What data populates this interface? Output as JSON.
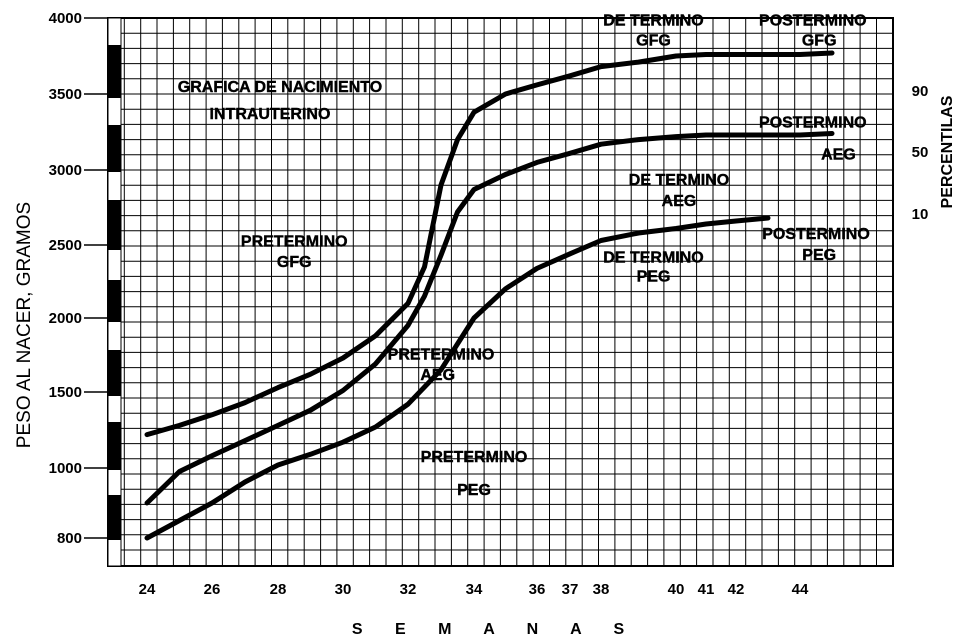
{
  "chart_data": {
    "type": "line",
    "title": "GRAFICA DE NACIMIENTO",
    "subtitle": "INTRAUTERINO",
    "xlabel": "S E M A N A S",
    "ylabel": "PESO AL NACER, GRAMOS",
    "y2label": "PERCENTILAS",
    "xticks": [
      "24",
      "26",
      "28",
      "30",
      "32",
      "34",
      "36",
      "37",
      "38",
      "40",
      "41",
      "42",
      "44"
    ],
    "xtick_values": [
      24,
      26,
      28,
      30,
      32,
      34,
      36,
      37,
      38,
      40,
      41,
      42,
      44
    ],
    "yticks": [
      "4000",
      "3500",
      "3000",
      "2500",
      "2000",
      "1500",
      "1000",
      "800"
    ],
    "ytick_values": [
      4000,
      3500,
      3000,
      2500,
      2000,
      1500,
      1000,
      800
    ],
    "xlim": [
      23,
      46
    ],
    "grid": true,
    "series": [
      {
        "name": "90",
        "x": [
          24,
          25,
          26,
          27,
          28,
          29,
          30,
          31,
          32,
          32.5,
          33,
          33.5,
          34,
          35,
          36,
          37,
          38,
          39,
          40,
          41,
          42,
          43,
          44,
          45
        ],
        "y": [
          1220,
          1280,
          1350,
          1430,
          1530,
          1620,
          1730,
          1880,
          2100,
          2350,
          2900,
          3200,
          3380,
          3500,
          3560,
          3620,
          3680,
          3710,
          3750,
          3760,
          3760,
          3760,
          3760,
          3770
        ]
      },
      {
        "name": "50",
        "x": [
          24,
          25,
          26,
          27,
          28,
          29,
          30,
          31,
          32,
          32.5,
          33,
          33.5,
          34,
          35,
          36,
          37,
          38,
          39,
          40,
          41,
          42,
          43,
          44,
          45
        ],
        "y": [
          900,
          990,
          1080,
          1180,
          1280,
          1380,
          1510,
          1690,
          1950,
          2150,
          2430,
          2720,
          2870,
          2970,
          3050,
          3110,
          3170,
          3200,
          3220,
          3230,
          3230,
          3230,
          3230,
          3240
        ]
      },
      {
        "name": "10",
        "x": [
          24,
          25,
          26,
          27,
          28,
          29,
          30,
          31,
          32,
          33,
          34,
          35,
          36,
          37,
          38,
          39,
          40,
          41,
          42,
          43
        ],
        "y": [
          800,
          850,
          900,
          960,
          1020,
          1090,
          1170,
          1270,
          1420,
          1650,
          2000,
          2200,
          2340,
          2440,
          2530,
          2580,
          2610,
          2640,
          2660,
          2680
        ]
      }
    ],
    "annotations": [
      {
        "text": "PRETERMINO",
        "x": 28.5,
        "y": 2530
      },
      {
        "text": "GFG",
        "x": 28.5,
        "y": 2390
      },
      {
        "text": "PRETERMINO",
        "x": 33,
        "y": 1760
      },
      {
        "text": "AEG",
        "x": 32.9,
        "y": 1620
      },
      {
        "text": "PRETERMINO",
        "x": 34,
        "y": 1080
      },
      {
        "text": "PEG",
        "x": 34,
        "y": 940
      },
      {
        "text": "DE TERMINO",
        "x": 39.4,
        "y": 3990
      },
      {
        "text": "GFG",
        "x": 39.4,
        "y": 3860
      },
      {
        "text": "DE TERMINO",
        "x": 40.1,
        "y": 2940
      },
      {
        "text": "AEG",
        "x": 40.1,
        "y": 2800
      },
      {
        "text": "DE TERMINO",
        "x": 39.4,
        "y": 2420
      },
      {
        "text": "PEG",
        "x": 39.4,
        "y": 2290
      },
      {
        "text": "POSTERMINO",
        "x": 44.4,
        "y": 3990
      },
      {
        "text": "GFG",
        "x": 44.6,
        "y": 3860
      },
      {
        "text": "POSTERMINO",
        "x": 44.4,
        "y": 3320
      },
      {
        "text": "AEG",
        "x": 45.2,
        "y": 3110
      },
      {
        "text": "POSTERMINO",
        "x": 44.5,
        "y": 2580
      },
      {
        "text": "PEG",
        "x": 44.6,
        "y": 2440
      }
    ],
    "percentile_labels": [
      "90",
      "50",
      "10"
    ]
  }
}
